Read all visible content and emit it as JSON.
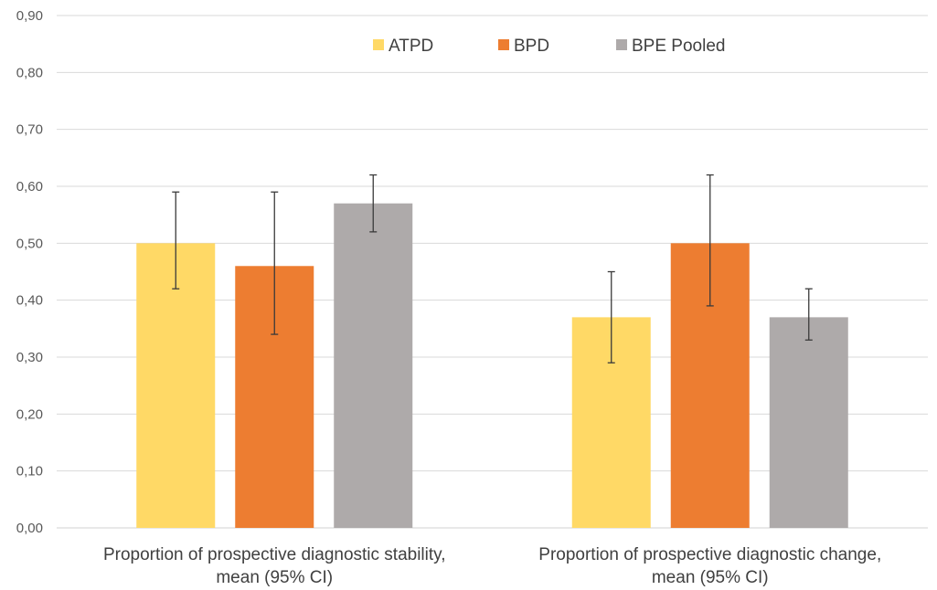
{
  "chart_data": {
    "type": "bar",
    "categories": [
      [
        "Proportion of prospective diagnostic stability,",
        "mean (95% CI)"
      ],
      [
        "Proportion of prospective diagnostic change,",
        "mean (95% CI)"
      ]
    ],
    "series": [
      {
        "name": "ATPD",
        "color": "#FFD966",
        "values": [
          0.5,
          0.37
        ],
        "ci_low": [
          0.42,
          0.29
        ],
        "ci_high": [
          0.59,
          0.45
        ]
      },
      {
        "name": "BPD",
        "color": "#ED7D31",
        "values": [
          0.46,
          0.5
        ],
        "ci_low": [
          0.34,
          0.39
        ],
        "ci_high": [
          0.59,
          0.62
        ]
      },
      {
        "name": "BPE Pooled",
        "color": "#AEAAAA",
        "values": [
          0.57,
          0.37
        ],
        "ci_low": [
          0.52,
          0.33
        ],
        "ci_high": [
          0.62,
          0.42
        ]
      }
    ],
    "y_ticks": [
      "0,00",
      "0,10",
      "0,20",
      "0,30",
      "0,40",
      "0,50",
      "0,60",
      "0,70",
      "0,80",
      "0,90"
    ],
    "ylim": [
      0,
      0.9
    ],
    "grid": true,
    "legend_position": "top-center",
    "title": "",
    "xlabel": "",
    "ylabel": ""
  }
}
